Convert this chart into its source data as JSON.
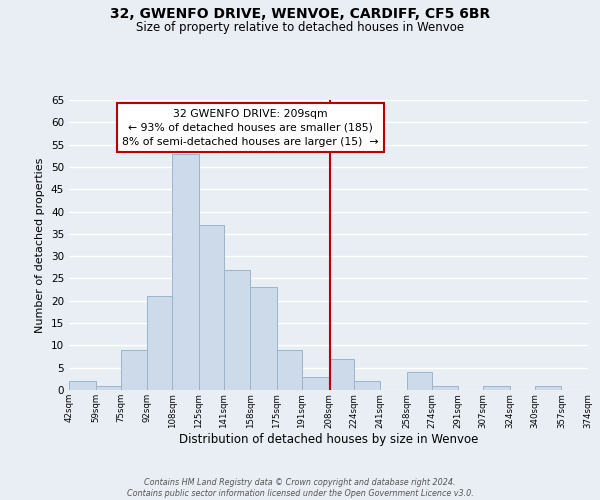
{
  "title": "32, GWENFO DRIVE, WENVOE, CARDIFF, CF5 6BR",
  "subtitle": "Size of property relative to detached houses in Wenvoe",
  "xlabel": "Distribution of detached houses by size in Wenvoe",
  "ylabel": "Number of detached properties",
  "bar_edges": [
    42,
    59,
    75,
    92,
    108,
    125,
    141,
    158,
    175,
    191,
    208,
    224,
    241,
    258,
    274,
    291,
    307,
    324,
    340,
    357,
    374
  ],
  "bar_heights": [
    2,
    1,
    9,
    21,
    53,
    37,
    27,
    23,
    9,
    3,
    7,
    2,
    0,
    4,
    1,
    0,
    1,
    0,
    1,
    0
  ],
  "bar_color": "#ccdaea",
  "bar_edge_color": "#9ab4cc",
  "property_value": 209,
  "vline_color": "#bb0000",
  "annotation_line1": "32 GWENFO DRIVE: 209sqm",
  "annotation_line2": "← 93% of detached houses are smaller (185)",
  "annotation_line3": "8% of semi-detached houses are larger (15)  →",
  "annotation_box_color": "#ffffff",
  "annotation_box_edge": "#bb0000",
  "ylim": [
    0,
    65
  ],
  "yticks": [
    0,
    5,
    10,
    15,
    20,
    25,
    30,
    35,
    40,
    45,
    50,
    55,
    60,
    65
  ],
  "footer_text": "Contains HM Land Registry data © Crown copyright and database right 2024.\nContains public sector information licensed under the Open Government Licence v3.0.",
  "tick_labels": [
    "42sqm",
    "59sqm",
    "75sqm",
    "92sqm",
    "108sqm",
    "125sqm",
    "141sqm",
    "158sqm",
    "175sqm",
    "191sqm",
    "208sqm",
    "224sqm",
    "241sqm",
    "258sqm",
    "274sqm",
    "291sqm",
    "307sqm",
    "324sqm",
    "340sqm",
    "357sqm",
    "374sqm"
  ],
  "background_color": "#e8eef4",
  "plot_bg_color": "#e8eef4",
  "grid_color": "#ffffff"
}
